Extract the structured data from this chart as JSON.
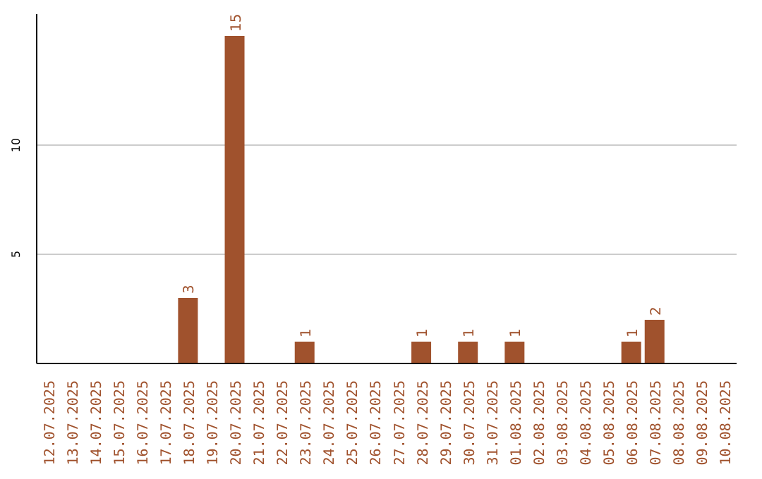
{
  "chart_data": {
    "type": "bar",
    "categories": [
      "12.07.2025",
      "13.07.2025",
      "14.07.2025",
      "15.07.2025",
      "16.07.2025",
      "17.07.2025",
      "18.07.2025",
      "19.07.2025",
      "20.07.2025",
      "21.07.2025",
      "22.07.2025",
      "23.07.2025",
      "24.07.2025",
      "25.07.2025",
      "26.07.2025",
      "27.07.2025",
      "28.07.2025",
      "29.07.2025",
      "30.07.2025",
      "31.07.2025",
      "01.08.2025",
      "02.08.2025",
      "03.08.2025",
      "04.08.2025",
      "05.08.2025",
      "06.08.2025",
      "07.08.2025",
      "08.08.2025",
      "09.08.2025",
      "10.08.2025"
    ],
    "values": [
      0,
      0,
      0,
      0,
      0,
      0,
      3,
      0,
      15,
      0,
      0,
      1,
      0,
      0,
      0,
      0,
      1,
      0,
      1,
      0,
      1,
      0,
      0,
      0,
      0,
      1,
      2,
      0,
      0,
      0
    ],
    "value_labels": [
      null,
      null,
      null,
      null,
      null,
      null,
      "3",
      null,
      "15",
      null,
      null,
      "1",
      null,
      null,
      null,
      null,
      "1",
      null,
      "1",
      null,
      "1",
      null,
      null,
      null,
      null,
      "1",
      "2",
      null,
      null,
      null
    ],
    "color": "#a0522d",
    "ylim": [
      0,
      16
    ],
    "yticks": [
      5,
      10
    ],
    "grid": "y"
  }
}
